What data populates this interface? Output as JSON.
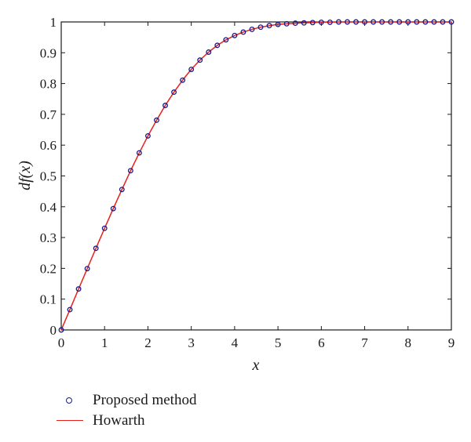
{
  "chart_data": {
    "type": "line",
    "xlabel": "x",
    "ylabel": "df(x)",
    "xlim": [
      0,
      9
    ],
    "ylim": [
      0,
      1
    ],
    "xticks": [
      "0",
      "1",
      "2",
      "3",
      "4",
      "5",
      "6",
      "7",
      "8",
      "9"
    ],
    "yticks": [
      "0",
      "0.1",
      "0.2",
      "0.3",
      "0.4",
      "0.5",
      "0.6",
      "0.7",
      "0.8",
      "0.9",
      "1"
    ],
    "grid": false,
    "legend_position": "bottom-left",
    "series": [
      {
        "name": "Proposed method",
        "style": "circle-markers",
        "color": "#1a1a8c",
        "x": [
          0,
          0.2,
          0.4,
          0.6,
          0.8,
          1.0,
          1.2,
          1.4,
          1.6,
          1.8,
          2.0,
          2.2,
          2.4,
          2.6,
          2.8,
          3.0,
          3.2,
          3.4,
          3.6,
          3.8,
          4.0,
          4.2,
          4.4,
          4.6,
          4.8,
          5.0,
          5.2,
          5.4,
          5.6,
          5.8,
          6.0,
          6.2,
          6.4,
          6.6,
          6.8,
          7.0,
          7.2,
          7.4,
          7.6,
          7.8,
          8.0,
          8.2,
          8.4,
          8.6,
          8.8,
          9.0
        ],
        "y": [
          0,
          0.066,
          0.133,
          0.199,
          0.265,
          0.33,
          0.394,
          0.456,
          0.517,
          0.575,
          0.63,
          0.681,
          0.729,
          0.772,
          0.811,
          0.846,
          0.876,
          0.902,
          0.924,
          0.942,
          0.956,
          0.967,
          0.976,
          0.983,
          0.988,
          0.992,
          0.994,
          0.996,
          0.997,
          0.998,
          0.999,
          0.999,
          1.0,
          1.0,
          1.0,
          1.0,
          1.0,
          1.0,
          1.0,
          1.0,
          1.0,
          1.0,
          1.0,
          1.0,
          1.0,
          1.0
        ]
      },
      {
        "name": "Howarth",
        "style": "solid-line",
        "color": "#e8201a",
        "x": [
          0,
          0.2,
          0.4,
          0.6,
          0.8,
          1.0,
          1.2,
          1.4,
          1.6,
          1.8,
          2.0,
          2.2,
          2.4,
          2.6,
          2.8,
          3.0,
          3.2,
          3.4,
          3.6,
          3.8,
          4.0,
          4.2,
          4.4,
          4.6,
          4.8,
          5.0,
          5.2,
          5.4,
          5.6,
          5.8,
          6.0,
          6.5,
          7.0,
          7.5,
          8.0,
          8.5,
          9.0
        ],
        "y": [
          0,
          0.066,
          0.133,
          0.199,
          0.265,
          0.33,
          0.394,
          0.456,
          0.517,
          0.575,
          0.63,
          0.681,
          0.729,
          0.772,
          0.811,
          0.846,
          0.876,
          0.902,
          0.924,
          0.942,
          0.956,
          0.967,
          0.976,
          0.983,
          0.988,
          0.992,
          0.994,
          0.996,
          0.997,
          0.998,
          0.999,
          1.0,
          1.0,
          1.0,
          1.0,
          1.0,
          1.0
        ]
      }
    ]
  }
}
